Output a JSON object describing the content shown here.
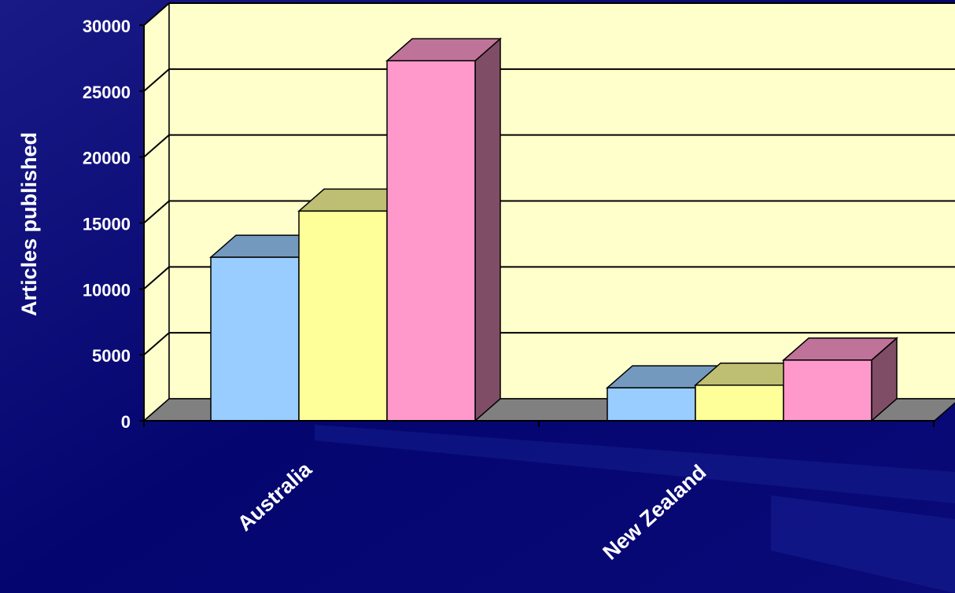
{
  "chart_data": {
    "type": "bar",
    "xlabel": "",
    "ylabel": "Articles published",
    "ylim": [
      0,
      30000
    ],
    "yticks": [
      "0",
      "5000",
      "10000",
      "15000",
      "20000",
      "25000",
      "30000"
    ],
    "categories": [
      "Australia",
      "New Zealand"
    ],
    "series": [
      {
        "values": [
          12400,
          2500
        ],
        "color": "#99ccff"
      },
      {
        "values": [
          15900,
          2700
        ],
        "color": "#ffff99"
      },
      {
        "values": [
          27300,
          4600
        ],
        "color": "#ff99cc"
      }
    ],
    "grid": true,
    "legend": "none"
  },
  "colors": {
    "background": "#05056b",
    "plot_wall": "#ffffcc",
    "floor": "#808080",
    "text": "#ffffff"
  }
}
